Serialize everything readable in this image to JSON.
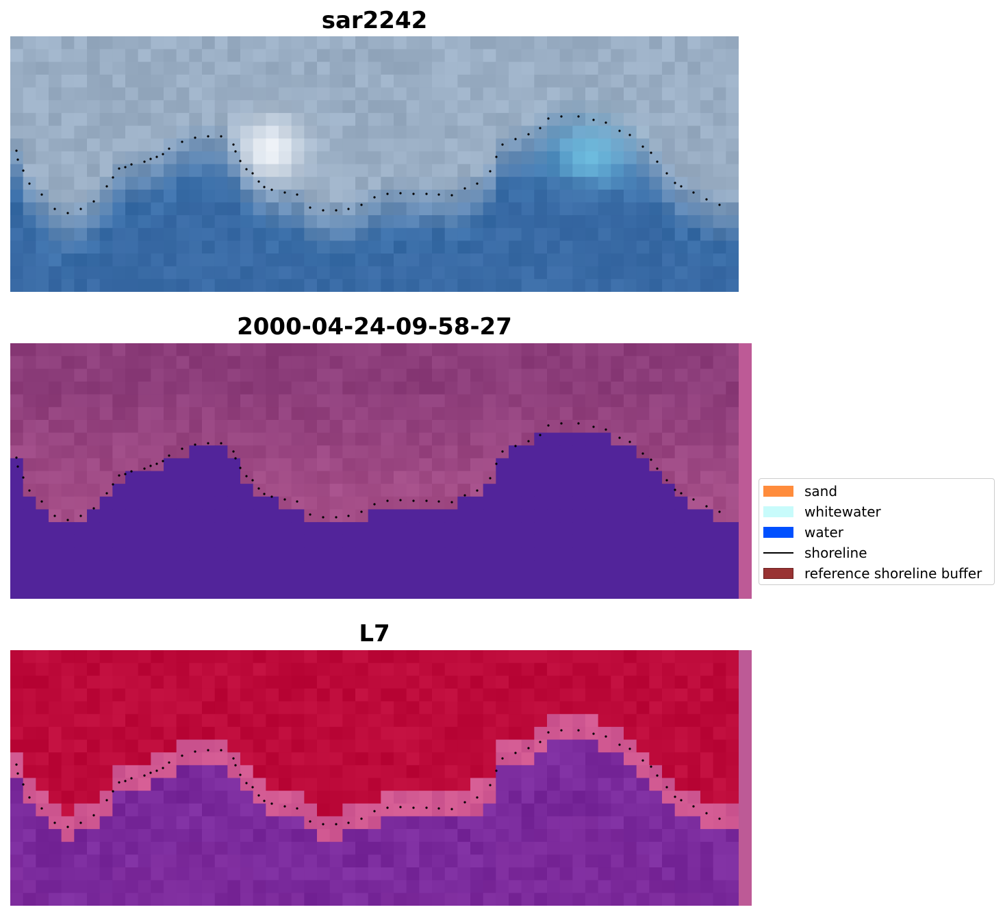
{
  "panels": [
    {
      "title": "sar2242"
    },
    {
      "title": "2000-04-24-09-58-27"
    },
    {
      "title": "L7"
    }
  ],
  "legend": {
    "items": [
      {
        "label": "sand",
        "color": "#ff8c3c",
        "kind": "patch"
      },
      {
        "label": "whitewater",
        "color": "#c8fbfb",
        "kind": "patch"
      },
      {
        "label": "water",
        "color": "#0050ff",
        "kind": "patch"
      },
      {
        "label": "shoreline",
        "color": "#000000",
        "kind": "line"
      },
      {
        "label": "reference shoreline buffer",
        "color": "#993333",
        "kind": "patch"
      }
    ]
  },
  "colors": {
    "rgb_water": "#3a6ea8",
    "rgb_land": "#9aaec4",
    "class_land": "#8c3d7a",
    "class_water": "#52249a",
    "ndwi_high": "#bd0a3a",
    "ndwi_low": "#7a2a9c",
    "buffer_strip": "#bd5a96"
  }
}
